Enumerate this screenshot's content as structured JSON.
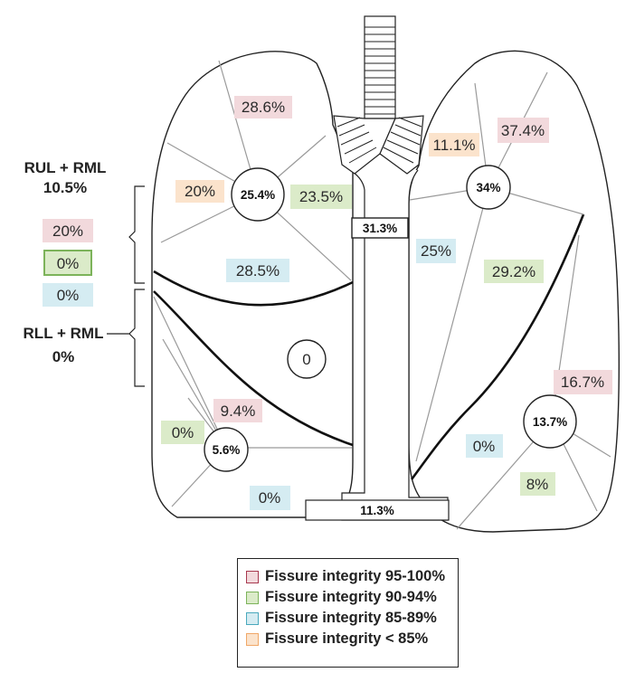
{
  "colors": {
    "pink_fill": "#f2d9dc",
    "pink_border": "#a8394f",
    "green_fill": "#dbebc9",
    "green_border": "#7cb35a",
    "blue_fill": "#d5ecf2",
    "blue_border": "#4aa9bd",
    "orange_fill": "#fbe3cc",
    "orange_border": "#f0a868"
  },
  "left_side": {
    "upper_group_line1": "RUL + RML",
    "upper_group_line2": "10.5%",
    "upper_values": [
      "20%",
      "0%",
      "0%"
    ],
    "lower_group_line1": "RLL + RML",
    "lower_group_line2": "0%"
  },
  "right_lung": {
    "upper_center": "25.4%",
    "upper_top": "28.6%",
    "upper_left": "20%",
    "upper_right": "23.5%",
    "upper_bottom": "28.5%",
    "middle_center": "0",
    "lower_center": "5.6%",
    "lower_top": "9.4%",
    "lower_left": "0%",
    "lower_bottom": "0%"
  },
  "trachea": {
    "upper_label": "31.3%",
    "lower_label": "11.3%"
  },
  "left_lung": {
    "upper_center": "34%",
    "upper_left": "11.1%",
    "upper_top": "37.4%",
    "upper_lower_left": "25%",
    "upper_lower_right": "29.2%",
    "lower_center": "13.7%",
    "lower_right": "16.7%",
    "lower_left": "0%",
    "lower_bottom": "8%"
  },
  "legend": {
    "items": [
      {
        "label": "Fissure integrity 95-100%",
        "color": "pink"
      },
      {
        "label": "Fissure integrity 90-94%",
        "color": "green"
      },
      {
        "label": "Fissure integrity 85-89%",
        "color": "blue"
      },
      {
        "label": "Fissure integrity < 85%",
        "color": "orange"
      }
    ]
  }
}
